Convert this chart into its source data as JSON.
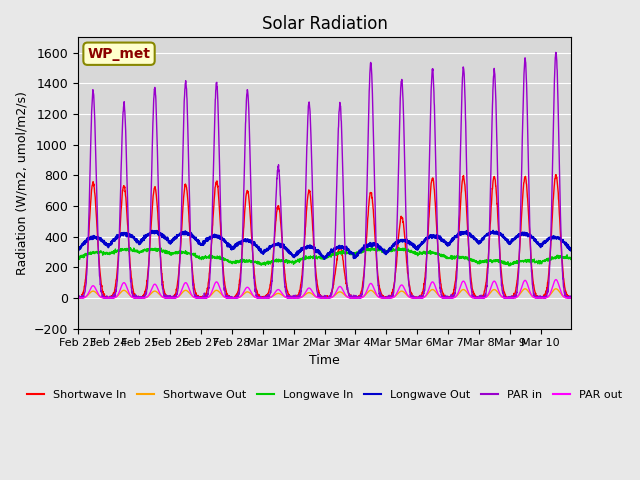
{
  "title": "Solar Radiation",
  "ylabel": "Radiation (W/m2, umol/m2/s)",
  "xlabel": "Time",
  "ylim": [
    -200,
    1700
  ],
  "yticks": [
    -200,
    0,
    200,
    400,
    600,
    800,
    1000,
    1200,
    1400,
    1600
  ],
  "background_color": "#e8e8e8",
  "plot_bg_color": "#d8d8d8",
  "legend_label": "WP_met",
  "series": {
    "shortwave_in": {
      "label": "Shortwave In",
      "color": "#ff0000"
    },
    "shortwave_out": {
      "label": "Shortwave Out",
      "color": "#ffa500"
    },
    "longwave_in": {
      "label": "Longwave In",
      "color": "#00cc00"
    },
    "longwave_out": {
      "label": "Longwave Out",
      "color": "#0000cc"
    },
    "par_in": {
      "label": "PAR in",
      "color": "#9900cc"
    },
    "par_out": {
      "label": "PAR out",
      "color": "#ff00ff"
    }
  },
  "xtick_labels": [
    "Feb 23",
    "Feb 24",
    "Feb 25",
    "Feb 26",
    "Feb 27",
    "Feb 28",
    "Mar 1",
    "Mar 2",
    "Mar 3",
    "Mar 4",
    "Mar 5",
    "Mar 6",
    "Mar 7",
    "Mar 8",
    "Mar 9",
    "Mar 10"
  ],
  "n_days": 16,
  "sw_peaks": [
    750,
    730,
    720,
    740,
    760,
    700,
    600,
    700,
    330,
    690,
    530,
    780,
    790,
    790,
    790,
    800
  ],
  "par_peaks": [
    1350,
    1260,
    1370,
    1410,
    1400,
    1350,
    850,
    1270,
    1260,
    1530,
    1430,
    1490,
    1500,
    1480,
    1560,
    1600
  ],
  "par_out_peaks": [
    80,
    100,
    90,
    100,
    105,
    70,
    55,
    65,
    75,
    95,
    85,
    105,
    110,
    110,
    115,
    120
  ],
  "sw_out_peaks": [
    45,
    50,
    45,
    50,
    50,
    40,
    30,
    35,
    40,
    50,
    45,
    55,
    55,
    55,
    60,
    60
  ]
}
